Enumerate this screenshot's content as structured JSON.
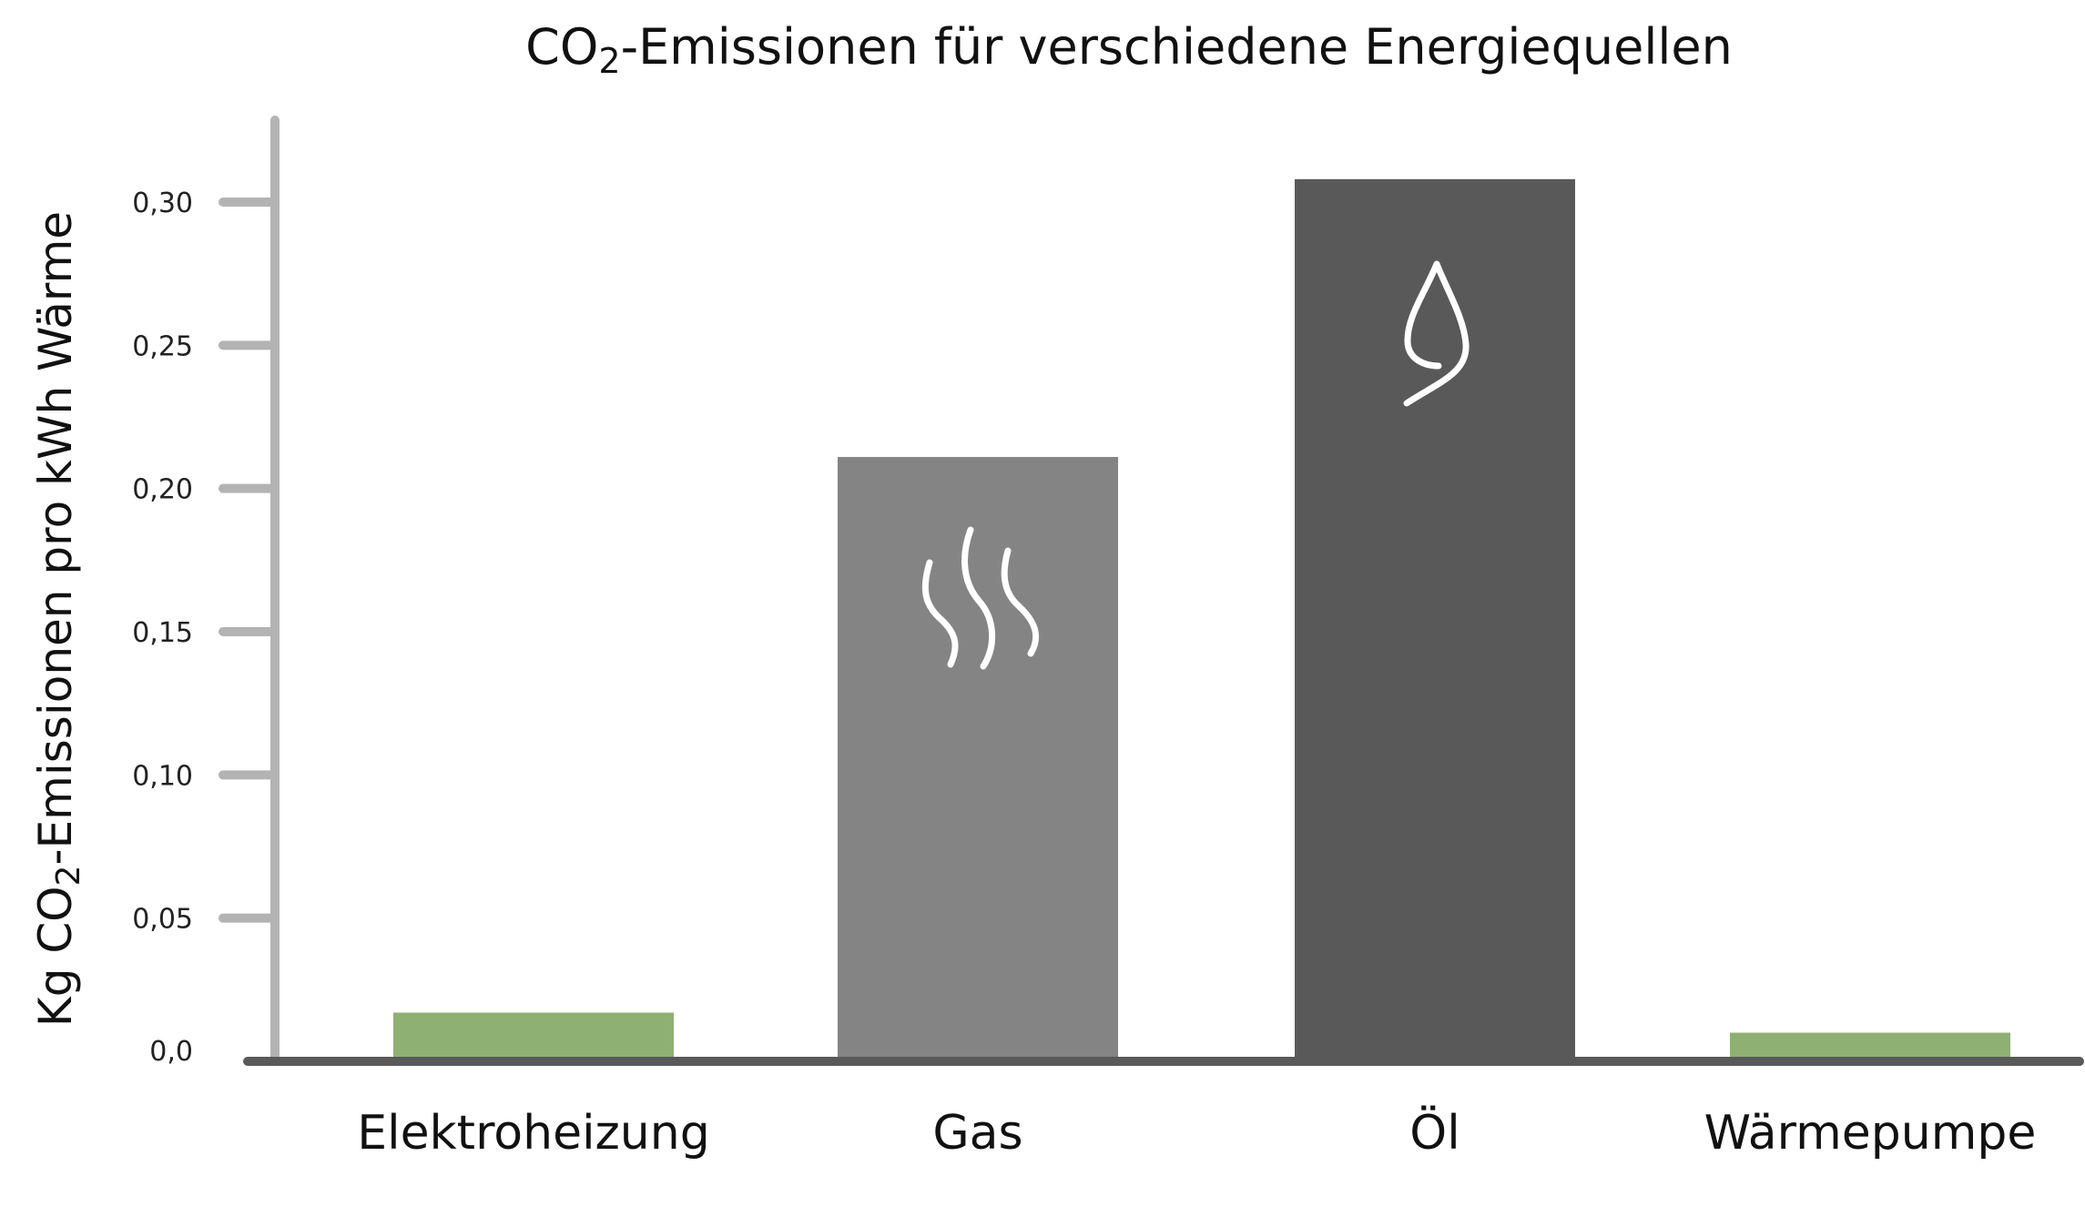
{
  "chart_data": {
    "type": "bar",
    "title": {
      "prefix": "CO",
      "subscript": "2",
      "suffix": "-Emissionen für verschiedene Energiequellen"
    },
    "ylabel": {
      "prefix": "Kg CO",
      "subscript": "2",
      "suffix": "-Emissionen pro kWh Wärme"
    },
    "xlabel": "",
    "categories": [
      "Elektroheizung",
      "Gas",
      "Öl",
      "Wärmepumpe"
    ],
    "values": [
      0.017,
      0.211,
      0.308,
      0.01
    ],
    "bar_colors": [
      "#8fb073",
      "#848484",
      "#595959",
      "#8fb073"
    ],
    "bar_icons": [
      "",
      "steam-icon",
      "drop-icon",
      ""
    ],
    "ylim": [
      0,
      0.32
    ],
    "yticks": [
      0.0,
      0.05,
      0.1,
      0.15,
      0.2,
      0.25,
      0.3
    ],
    "ytick_labels": [
      "0,0",
      "0,05",
      "0,10",
      "0,15",
      "0,20",
      "0,25",
      "0,30"
    ],
    "grid": false,
    "legend": "none",
    "axis_color": "#b3b3b3",
    "baseline_color": "#595959"
  }
}
